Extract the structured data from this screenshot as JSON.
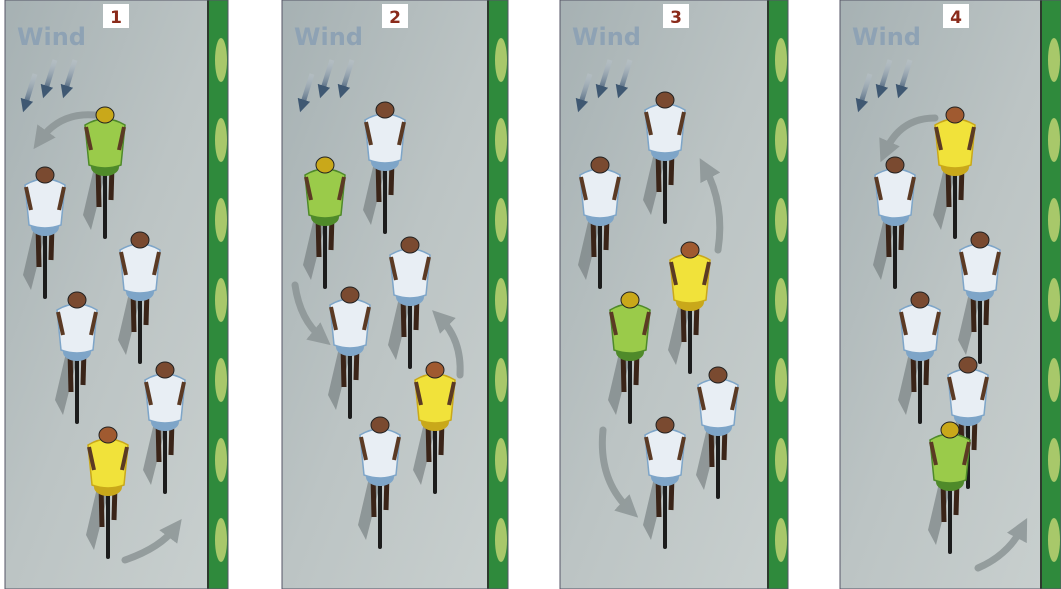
{
  "panels": [
    {
      "number": "1",
      "wind": "Wind"
    },
    {
      "number": "2",
      "wind": "Wind"
    },
    {
      "number": "3",
      "wind": "Wind"
    },
    {
      "number": "4",
      "wind": "Wind"
    }
  ]
}
